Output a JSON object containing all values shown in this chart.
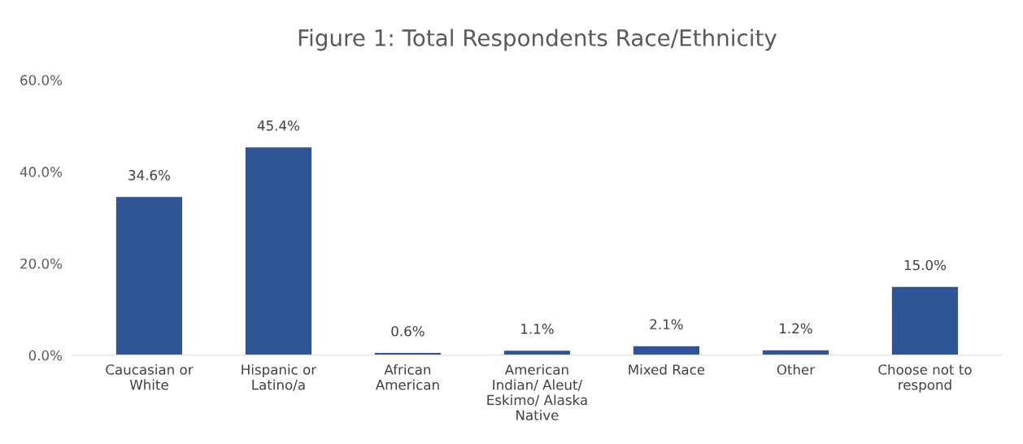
{
  "chart_data": {
    "type": "bar",
    "title": "Figure 1: Total Respondents Race/Ethnicity",
    "categories": [
      "Caucasian or\nWhite",
      "Hispanic or\nLatino/a",
      "African\nAmerican",
      "American\nIndian/ Aleut/\nEskimo/ Alaska\nNative",
      "Mixed Race",
      "Other",
      "Choose not to\nrespond"
    ],
    "values": [
      34.6,
      45.4,
      0.6,
      1.1,
      2.1,
      1.2,
      15.0
    ],
    "value_labels": [
      "34.6%",
      "45.4%",
      "0.6%",
      "1.1%",
      "2.1%",
      "1.2%",
      "15.0%"
    ],
    "color": "#2f5597",
    "ylim": [
      0,
      60
    ],
    "yticks": [
      {
        "value": 0,
        "label": "0.0%"
      },
      {
        "value": 20,
        "label": "20.0%"
      },
      {
        "value": 40,
        "label": "40.0%"
      },
      {
        "value": 60,
        "label": "60.0%"
      }
    ],
    "grid": false,
    "legend": false
  }
}
